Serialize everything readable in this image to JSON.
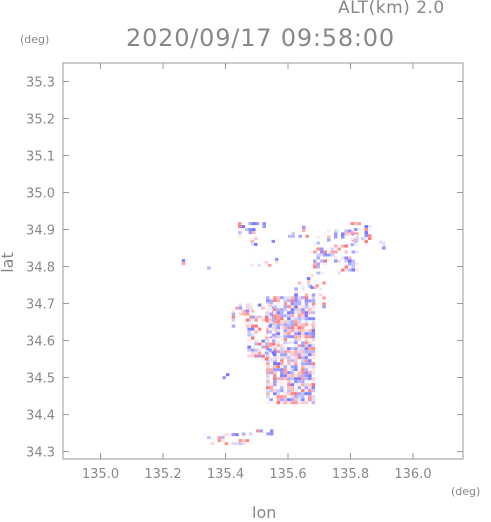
{
  "header": {
    "alt_label": "ALT(km)  2.0",
    "datetime": "2020/09/17 09:58:00",
    "y_unit": "(deg)",
    "x_unit": "(deg)"
  },
  "chart_data": {
    "type": "heatmap",
    "xlabel": "lon",
    "ylabel": "lat",
    "xlim": [
      134.88,
      136.16
    ],
    "ylim": [
      34.28,
      35.35
    ],
    "x_ticks": [
      135.0,
      135.2,
      135.4,
      135.6,
      135.8,
      136.0
    ],
    "x_tick_labels": [
      "135.0",
      "135.2",
      "135.4",
      "135.6",
      "135.8",
      "136.0"
    ],
    "y_ticks": [
      34.3,
      34.4,
      34.5,
      34.6,
      34.7,
      34.8,
      34.9,
      35.0,
      35.1,
      35.2,
      35.3
    ],
    "y_tick_labels": [
      "34.3",
      "34.4",
      "34.5",
      "34.6",
      "34.7",
      "34.8",
      "34.9",
      "35.0",
      "35.1",
      "35.2",
      "35.3"
    ],
    "grid": false,
    "colors": {
      "positive": "#f07070",
      "negative": "#7070f0",
      "axis": "#999999",
      "text": "#888888"
    },
    "regions": [
      {
        "lon": [
          135.53,
          135.68
        ],
        "lat": [
          34.43,
          34.72
        ],
        "density": 0.85
      },
      {
        "lon": [
          135.47,
          135.55
        ],
        "lat": [
          34.55,
          34.7
        ],
        "density": 0.6
      },
      {
        "lon": [
          135.42,
          135.48
        ],
        "lat": [
          34.64,
          34.7
        ],
        "density": 0.4
      },
      {
        "lon": [
          135.62,
          135.72
        ],
        "lat": [
          34.68,
          34.76
        ],
        "density": 0.4
      },
      {
        "lon": [
          135.68,
          135.82
        ],
        "lat": [
          34.78,
          34.9
        ],
        "density": 0.45
      },
      {
        "lon": [
          135.8,
          135.86
        ],
        "lat": [
          34.86,
          34.92
        ],
        "density": 0.5
      },
      {
        "lon": [
          135.48,
          135.58
        ],
        "lat": [
          34.8,
          34.88
        ],
        "density": 0.25
      },
      {
        "lon": [
          135.44,
          135.52
        ],
        "lat": [
          34.88,
          34.92
        ],
        "density": 0.35
      },
      {
        "lon": [
          135.6,
          135.66
        ],
        "lat": [
          34.88,
          34.91
        ],
        "density": 0.35
      },
      {
        "lon": [
          135.33,
          135.47
        ],
        "lat": [
          34.32,
          34.35
        ],
        "density": 0.45
      },
      {
        "lon": [
          135.43,
          135.55
        ],
        "lat": [
          34.35,
          34.36
        ],
        "density": 0.35
      },
      {
        "lon": [
          135.33,
          135.35
        ],
        "lat": [
          34.78,
          34.8
        ],
        "density": 0.6
      },
      {
        "lon": [
          135.26,
          135.27
        ],
        "lat": [
          34.81,
          34.82
        ],
        "density": 0.8
      },
      {
        "lon": [
          135.89,
          135.91
        ],
        "lat": [
          34.85,
          34.87
        ],
        "density": 0.7
      },
      {
        "lon": [
          135.66,
          135.69
        ],
        "lat": [
          34.74,
          34.78
        ],
        "density": 0.4
      },
      {
        "lon": [
          135.39,
          135.41
        ],
        "lat": [
          34.5,
          34.52
        ],
        "density": 0.3
      }
    ]
  }
}
